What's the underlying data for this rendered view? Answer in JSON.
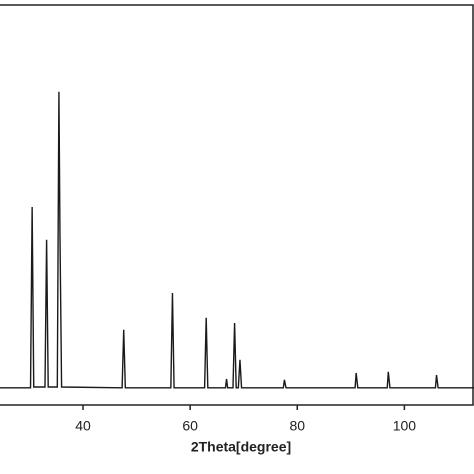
{
  "chart_data": {
    "type": "line",
    "x_label": "2Theta[degree]",
    "x": [
      24.5,
      30.2,
      30.5,
      30.8,
      32.9,
      33.2,
      33.5,
      35.2,
      35.5,
      35.7,
      36.0,
      47.3,
      47.6,
      47.9,
      56.4,
      56.7,
      57.0,
      62.7,
      63.0,
      63.3,
      66.6,
      66.8,
      67.0,
      68.0,
      68.3,
      68.6,
      69.0,
      69.3,
      69.6,
      77.4,
      77.6,
      77.9,
      90.8,
      91.0,
      91.3,
      96.8,
      97.0,
      97.3,
      105.8,
      106.0,
      106.3,
      113.0
    ],
    "values": [
      4.3,
      4.3,
      49.5,
      4.5,
      4.5,
      41.3,
      4.5,
      4.5,
      78.3,
      42.0,
      4.5,
      4.3,
      18.8,
      4.3,
      4.3,
      28.0,
      4.3,
      4.3,
      21.8,
      4.3,
      4.3,
      6.5,
      4.3,
      4.3,
      20.5,
      4.3,
      4.3,
      11.3,
      4.3,
      4.3,
      6.3,
      4.3,
      4.3,
      8.0,
      4.3,
      4.3,
      8.3,
      4.3,
      4.3,
      7.5,
      4.3,
      4.3
    ],
    "color": "#1a1a1a",
    "xlim": [
      24.5,
      113
    ],
    "xticks": [
      40,
      60,
      80,
      100
    ],
    "ylim": [
      0,
      100
    ]
  }
}
